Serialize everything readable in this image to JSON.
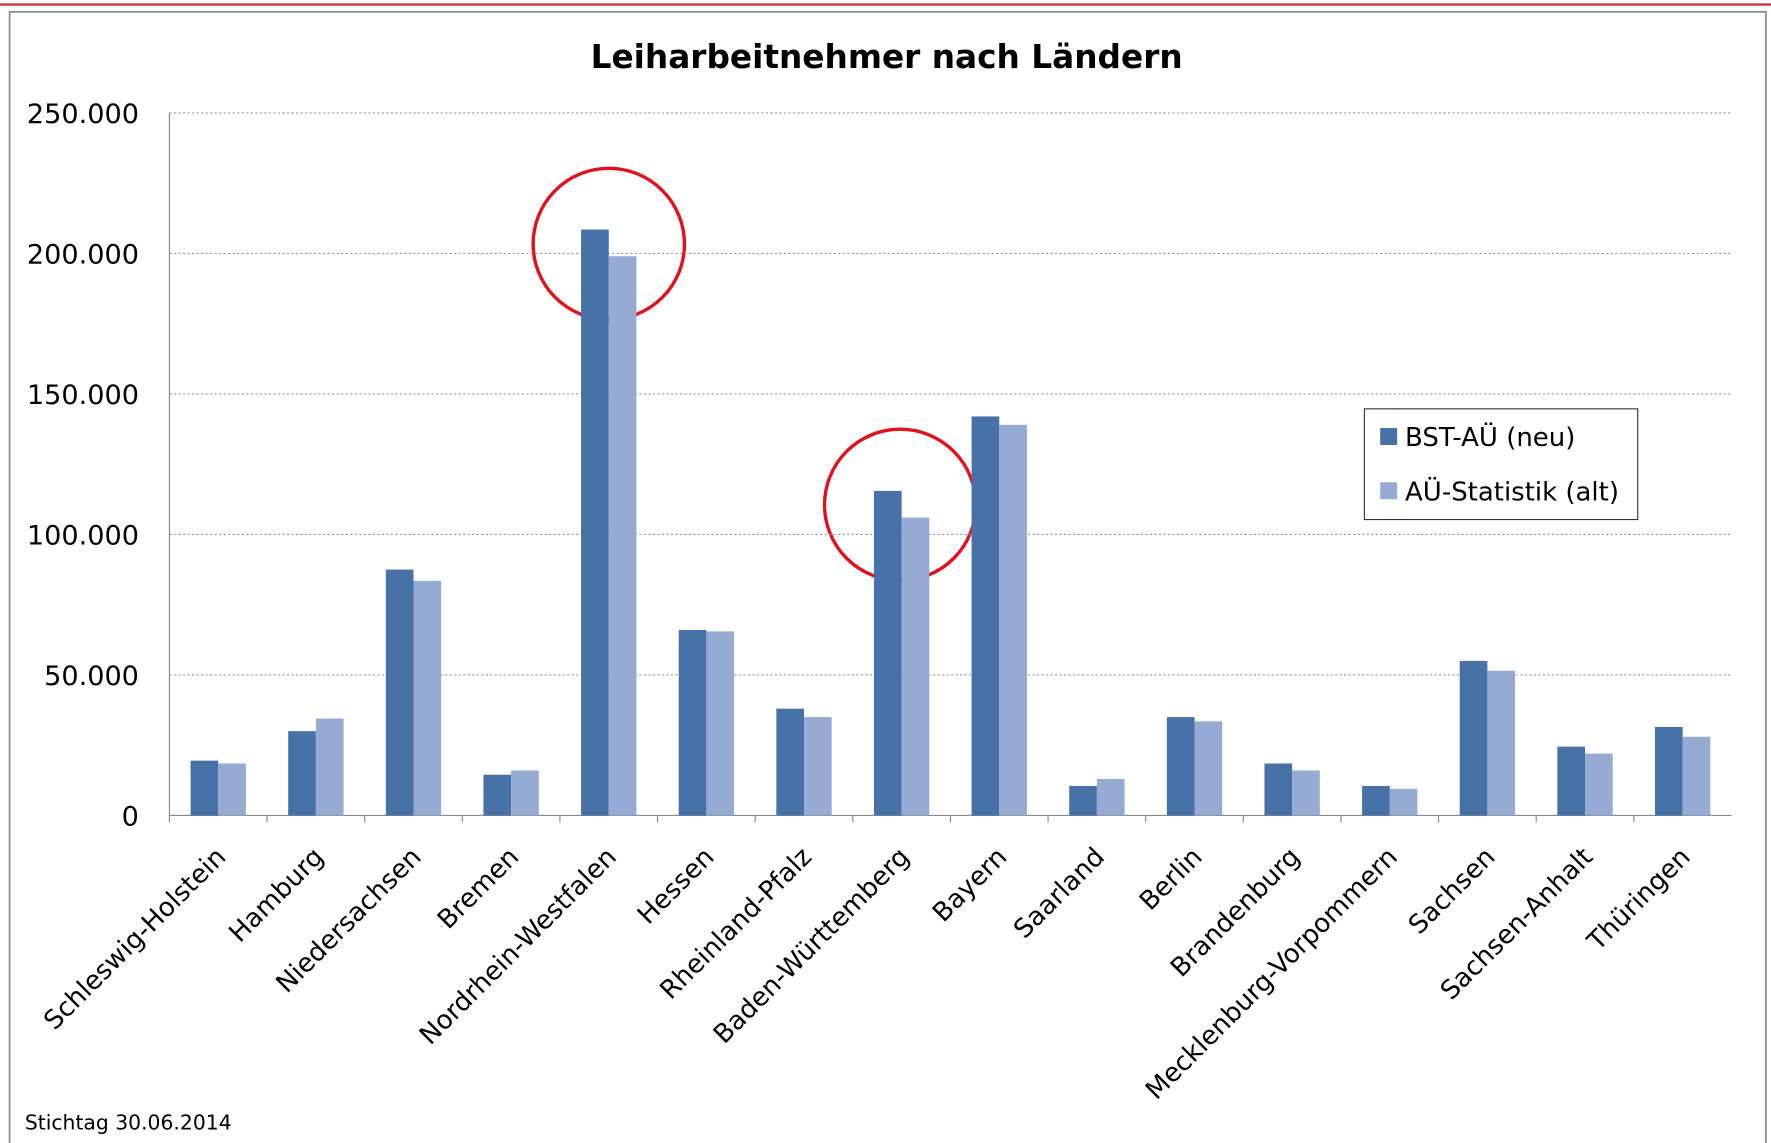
{
  "chart_data": {
    "type": "bar",
    "title": "Leiharbeitnehmer nach Ländern",
    "categories": [
      "Schleswig-Holstein",
      "Hamburg",
      "Niedersachsen",
      "Bremen",
      "Nordrhein-Westfalen",
      "Hessen",
      "Rheinland-Pfalz",
      "Baden-Württemberg",
      "Bayern",
      "Saarland",
      "Berlin",
      "Brandenburg",
      "Mecklenburg-Vorpommern",
      "Sachsen",
      "Sachsen-Anhalt",
      "Thüringen"
    ],
    "series": [
      {
        "name": "BST-AÜ (neu)",
        "color": "#4672a8",
        "values": [
          19500,
          30000,
          87500,
          14500,
          208500,
          66000,
          38000,
          115500,
          142000,
          10500,
          35000,
          18500,
          10500,
          55000,
          24500,
          31500
        ]
      },
      {
        "name": "AÜ-Statistik (alt)",
        "color": "#95abd3",
        "values": [
          18500,
          34500,
          83500,
          16000,
          199000,
          65500,
          35000,
          106000,
          139000,
          13000,
          33500,
          16000,
          9500,
          51500,
          22000,
          28000
        ]
      }
    ],
    "ylim": [
      0,
      250000
    ],
    "yticks": [
      0,
      {
        "value": 50000,
        "label": "50.000"
      },
      {
        "value": 100000,
        "label": "100.000"
      },
      {
        "value": 150000,
        "label": "150.000"
      },
      {
        "value": 200000,
        "label": "200.000"
      },
      {
        "value": 250000,
        "label": "250.000"
      }
    ],
    "grid": true,
    "legend": "right",
    "footnote": "Stichtag 30.06.2014"
  }
}
